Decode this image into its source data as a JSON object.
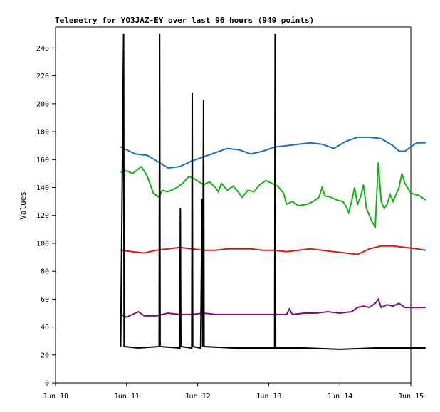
{
  "chart_data": {
    "type": "line",
    "title": "Telemetry for YO3JAZ-EY over last 96 hours (949 points)",
    "xlabel": "",
    "ylabel": "Values",
    "x_axis": {
      "type": "time",
      "ticks": [
        {
          "t": "2000-06-10T00:00:00",
          "label": "Jun 10"
        },
        {
          "t": "2000-06-11T00:00:00",
          "label": "Jun 11"
        },
        {
          "t": "2000-06-12T00:00:00",
          "label": "Jun 12"
        },
        {
          "t": "2000-06-13T00:00:00",
          "label": "Jun 13"
        },
        {
          "t": "2000-06-14T00:00:00",
          "label": "Jun 14"
        },
        {
          "t": "2000-06-15T00:00:00",
          "label": "Jun 15"
        }
      ],
      "xlim": [
        "2000-06-10T00:00:00",
        "2000-06-15T00:00:00"
      ]
    },
    "ylim": [
      0,
      255
    ],
    "yticks": [
      0,
      20,
      40,
      60,
      80,
      100,
      120,
      140,
      160,
      180,
      200,
      220,
      240
    ],
    "grid": false,
    "legend": "none",
    "series": [
      {
        "color": "#1a6fc9",
        "points": [
          [
            "2000-06-10T22:00:00",
            169
          ],
          [
            "2000-06-11T00:00:00",
            167
          ],
          [
            "2000-06-11T03:00:00",
            164
          ],
          [
            "2000-06-11T07:00:00",
            163
          ],
          [
            "2000-06-11T11:00:00",
            158
          ],
          [
            "2000-06-11T14:00:00",
            154
          ],
          [
            "2000-06-11T18:00:00",
            155
          ],
          [
            "2000-06-11T22:00:00",
            159
          ],
          [
            "2000-06-12T02:00:00",
            162
          ],
          [
            "2000-06-12T06:00:00",
            165
          ],
          [
            "2000-06-12T10:00:00",
            168
          ],
          [
            "2000-06-12T14:00:00",
            167
          ],
          [
            "2000-06-12T18:00:00",
            164
          ],
          [
            "2000-06-12T22:00:00",
            166
          ],
          [
            "2000-06-13T02:00:00",
            169
          ],
          [
            "2000-06-13T06:00:00",
            170
          ],
          [
            "2000-06-13T10:00:00",
            171
          ],
          [
            "2000-06-13T14:00:00",
            172
          ],
          [
            "2000-06-13T18:00:00",
            171
          ],
          [
            "2000-06-13T22:00:00",
            168
          ],
          [
            "2000-06-14T02:00:00",
            173
          ],
          [
            "2000-06-14T06:00:00",
            176
          ],
          [
            "2000-06-14T10:00:00",
            176
          ],
          [
            "2000-06-14T14:00:00",
            175
          ],
          [
            "2000-06-14T18:00:00",
            170
          ],
          [
            "2000-06-14T20:00:00",
            166
          ],
          [
            "2000-06-14T22:00:00",
            166
          ],
          [
            "2000-06-15T00:00:00",
            169
          ],
          [
            "2000-06-15T02:00:00",
            172
          ],
          [
            "2000-06-15T05:00:00",
            172
          ]
        ]
      },
      {
        "color": "#13b313",
        "points": [
          [
            "2000-06-10T22:00:00",
            151
          ],
          [
            "2000-06-11T00:00:00",
            152
          ],
          [
            "2000-06-11T02:00:00",
            150
          ],
          [
            "2000-06-11T05:00:00",
            155
          ],
          [
            "2000-06-11T07:00:00",
            148
          ],
          [
            "2000-06-11T09:00:00",
            136
          ],
          [
            "2000-06-11T11:00:00",
            133
          ],
          [
            "2000-06-11T12:00:00",
            138
          ],
          [
            "2000-06-11T14:00:00",
            137
          ],
          [
            "2000-06-11T17:00:00",
            140
          ],
          [
            "2000-06-11T19:00:00",
            143
          ],
          [
            "2000-06-11T21:00:00",
            148
          ],
          [
            "2000-06-11T23:00:00",
            146
          ],
          [
            "2000-06-12T02:00:00",
            142
          ],
          [
            "2000-06-12T04:00:00",
            144
          ],
          [
            "2000-06-12T06:00:00",
            140
          ],
          [
            "2000-06-12T07:00:00",
            137
          ],
          [
            "2000-06-12T08:00:00",
            143
          ],
          [
            "2000-06-12T10:00:00",
            138
          ],
          [
            "2000-06-12T12:00:00",
            141
          ],
          [
            "2000-06-12T14:00:00",
            136
          ],
          [
            "2000-06-12T15:00:00",
            133
          ],
          [
            "2000-06-12T17:00:00",
            138
          ],
          [
            "2000-06-12T19:00:00",
            137
          ],
          [
            "2000-06-12T21:00:00",
            142
          ],
          [
            "2000-06-12T23:00:00",
            145
          ],
          [
            "2000-06-13T01:00:00",
            143
          ],
          [
            "2000-06-13T03:00:00",
            141
          ],
          [
            "2000-06-13T05:00:00",
            136
          ],
          [
            "2000-06-13T06:00:00",
            128
          ],
          [
            "2000-06-13T08:00:00",
            130
          ],
          [
            "2000-06-13T10:00:00",
            127
          ],
          [
            "2000-06-13T13:00:00",
            128
          ],
          [
            "2000-06-13T15:00:00",
            130
          ],
          [
            "2000-06-13T17:00:00",
            133
          ],
          [
            "2000-06-13T18:00:00",
            140
          ],
          [
            "2000-06-13T19:00:00",
            134
          ],
          [
            "2000-06-13T21:00:00",
            133
          ],
          [
            "2000-06-13T23:00:00",
            131
          ],
          [
            "2000-06-14T01:00:00",
            130
          ],
          [
            "2000-06-14T02:00:00",
            127
          ],
          [
            "2000-06-14T03:00:00",
            122
          ],
          [
            "2000-06-14T04:00:00",
            130
          ],
          [
            "2000-06-14T05:00:00",
            140
          ],
          [
            "2000-06-14T06:00:00",
            128
          ],
          [
            "2000-06-14T07:00:00",
            133
          ],
          [
            "2000-06-14T08:00:00",
            142
          ],
          [
            "2000-06-14T09:00:00",
            125
          ],
          [
            "2000-06-14T10:00:00",
            120
          ],
          [
            "2000-06-14T11:00:00",
            115
          ],
          [
            "2000-06-14T12:00:00",
            112
          ],
          [
            "2000-06-14T13:00:00",
            158
          ],
          [
            "2000-06-14T14:00:00",
            130
          ],
          [
            "2000-06-14T15:00:00",
            125
          ],
          [
            "2000-06-14T16:00:00",
            128
          ],
          [
            "2000-06-14T17:00:00",
            135
          ],
          [
            "2000-06-14T18:00:00",
            130
          ],
          [
            "2000-06-14T19:00:00",
            135
          ],
          [
            "2000-06-14T20:00:00",
            140
          ],
          [
            "2000-06-14T21:00:00",
            150
          ],
          [
            "2000-06-14T22:00:00",
            143
          ],
          [
            "2000-06-15T00:00:00",
            136
          ],
          [
            "2000-06-15T03:00:00",
            134
          ],
          [
            "2000-06-15T05:00:00",
            131
          ]
        ]
      },
      {
        "color": "#d41c1c",
        "points": [
          [
            "2000-06-10T22:00:00",
            95
          ],
          [
            "2000-06-11T02:00:00",
            94
          ],
          [
            "2000-06-11T06:00:00",
            93
          ],
          [
            "2000-06-11T10:00:00",
            95
          ],
          [
            "2000-06-11T14:00:00",
            96
          ],
          [
            "2000-06-11T18:00:00",
            97
          ],
          [
            "2000-06-11T22:00:00",
            96
          ],
          [
            "2000-06-12T02:00:00",
            95
          ],
          [
            "2000-06-12T06:00:00",
            95
          ],
          [
            "2000-06-12T10:00:00",
            96
          ],
          [
            "2000-06-12T14:00:00",
            96
          ],
          [
            "2000-06-12T18:00:00",
            96
          ],
          [
            "2000-06-12T22:00:00",
            95
          ],
          [
            "2000-06-13T02:00:00",
            95
          ],
          [
            "2000-06-13T06:00:00",
            94
          ],
          [
            "2000-06-13T10:00:00",
            95
          ],
          [
            "2000-06-13T14:00:00",
            96
          ],
          [
            "2000-06-13T18:00:00",
            95
          ],
          [
            "2000-06-13T22:00:00",
            94
          ],
          [
            "2000-06-14T02:00:00",
            93
          ],
          [
            "2000-06-14T06:00:00",
            92
          ],
          [
            "2000-06-14T10:00:00",
            96
          ],
          [
            "2000-06-14T14:00:00",
            98
          ],
          [
            "2000-06-14T18:00:00",
            98
          ],
          [
            "2000-06-14T22:00:00",
            97
          ],
          [
            "2000-06-15T02:00:00",
            96
          ],
          [
            "2000-06-15T05:00:00",
            95
          ]
        ]
      },
      {
        "color": "#7a117a",
        "points": [
          [
            "2000-06-10T22:00:00",
            49
          ],
          [
            "2000-06-11T00:00:00",
            47
          ],
          [
            "2000-06-11T02:00:00",
            49
          ],
          [
            "2000-06-11T04:00:00",
            51
          ],
          [
            "2000-06-11T06:00:00",
            48
          ],
          [
            "2000-06-11T10:00:00",
            48
          ],
          [
            "2000-06-11T14:00:00",
            50
          ],
          [
            "2000-06-11T18:00:00",
            49
          ],
          [
            "2000-06-11T22:00:00",
            49
          ],
          [
            "2000-06-12T02:00:00",
            50
          ],
          [
            "2000-06-12T06:00:00",
            49
          ],
          [
            "2000-06-12T10:00:00",
            49
          ],
          [
            "2000-06-12T14:00:00",
            49
          ],
          [
            "2000-06-12T18:00:00",
            49
          ],
          [
            "2000-06-12T22:00:00",
            49
          ],
          [
            "2000-06-13T02:00:00",
            49
          ],
          [
            "2000-06-13T06:00:00",
            49
          ],
          [
            "2000-06-13T07:00:00",
            53
          ],
          [
            "2000-06-13T08:00:00",
            49
          ],
          [
            "2000-06-13T12:00:00",
            50
          ],
          [
            "2000-06-13T16:00:00",
            50
          ],
          [
            "2000-06-13T20:00:00",
            51
          ],
          [
            "2000-06-14T00:00:00",
            50
          ],
          [
            "2000-06-14T04:00:00",
            51
          ],
          [
            "2000-06-14T06:00:00",
            54
          ],
          [
            "2000-06-14T08:00:00",
            55
          ],
          [
            "2000-06-14T10:00:00",
            54
          ],
          [
            "2000-06-14T12:00:00",
            57
          ],
          [
            "2000-06-14T13:00:00",
            60
          ],
          [
            "2000-06-14T14:00:00",
            54
          ],
          [
            "2000-06-14T16:00:00",
            56
          ],
          [
            "2000-06-14T18:00:00",
            55
          ],
          [
            "2000-06-14T20:00:00",
            57
          ],
          [
            "2000-06-14T22:00:00",
            54
          ],
          [
            "2000-06-15T02:00:00",
            54
          ],
          [
            "2000-06-15T05:00:00",
            54
          ]
        ]
      },
      {
        "color": "#000000",
        "points": [
          [
            "2000-06-10T22:00:00",
            26
          ],
          [
            "2000-06-10T23:00:00",
            250
          ],
          [
            "2000-06-10T23:10:00",
            26
          ],
          [
            "2000-06-11T04:00:00",
            25
          ],
          [
            "2000-06-11T11:00:00",
            26
          ],
          [
            "2000-06-11T11:10:00",
            250
          ],
          [
            "2000-06-11T11:20:00",
            26
          ],
          [
            "2000-06-11T18:00:00",
            25
          ],
          [
            "2000-06-11T18:10:00",
            125
          ],
          [
            "2000-06-11T18:20:00",
            26
          ],
          [
            "2000-06-11T22:00:00",
            25
          ],
          [
            "2000-06-11T22:10:00",
            208
          ],
          [
            "2000-06-11T22:20:00",
            26
          ],
          [
            "2000-06-12T01:00:00",
            25
          ],
          [
            "2000-06-12T01:30:00",
            132
          ],
          [
            "2000-06-12T01:40:00",
            26
          ],
          [
            "2000-06-12T02:00:00",
            203
          ],
          [
            "2000-06-12T02:10:00",
            26
          ],
          [
            "2000-06-12T12:00:00",
            25
          ],
          [
            "2000-06-12T22:00:00",
            25
          ],
          [
            "2000-06-13T02:00:00",
            25
          ],
          [
            "2000-06-13T02:10:00",
            250
          ],
          [
            "2000-06-13T02:20:00",
            25
          ],
          [
            "2000-06-13T12:00:00",
            25
          ],
          [
            "2000-06-14T00:00:00",
            24
          ],
          [
            "2000-06-14T12:00:00",
            25
          ],
          [
            "2000-06-15T05:00:00",
            25
          ]
        ]
      }
    ]
  }
}
